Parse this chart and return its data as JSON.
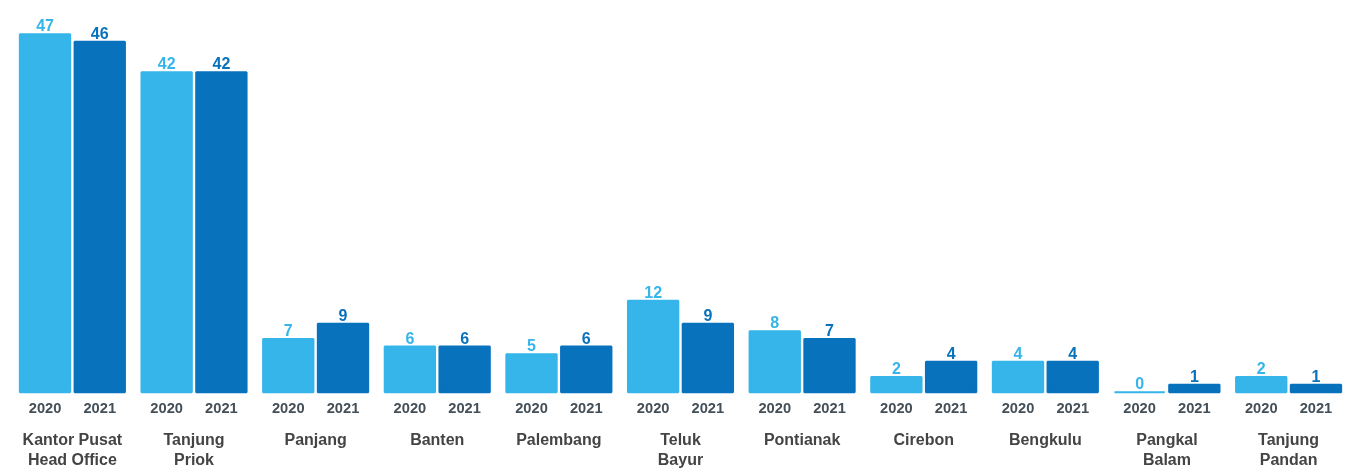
{
  "chart_data": {
    "type": "bar",
    "categories": [
      "Kantor Pusat\nHead Office",
      "Tanjung\nPriok",
      "Panjang",
      "Banten",
      "Palembang",
      "Teluk\nBayur",
      "Pontianak",
      "Cirebon",
      "Bengkulu",
      "Pangkal\nBalam",
      "Tanjung\nPandan"
    ],
    "series": [
      {
        "name": "2020",
        "color": "#35b5e9",
        "values": [
          47,
          42,
          7,
          6,
          5,
          12,
          8,
          2,
          4,
          0,
          2
        ]
      },
      {
        "name": "2021",
        "color": "#0872bd",
        "values": [
          46,
          42,
          9,
          6,
          6,
          9,
          7,
          4,
          4,
          1,
          1
        ]
      }
    ],
    "data_labels": true,
    "grid": false
  }
}
